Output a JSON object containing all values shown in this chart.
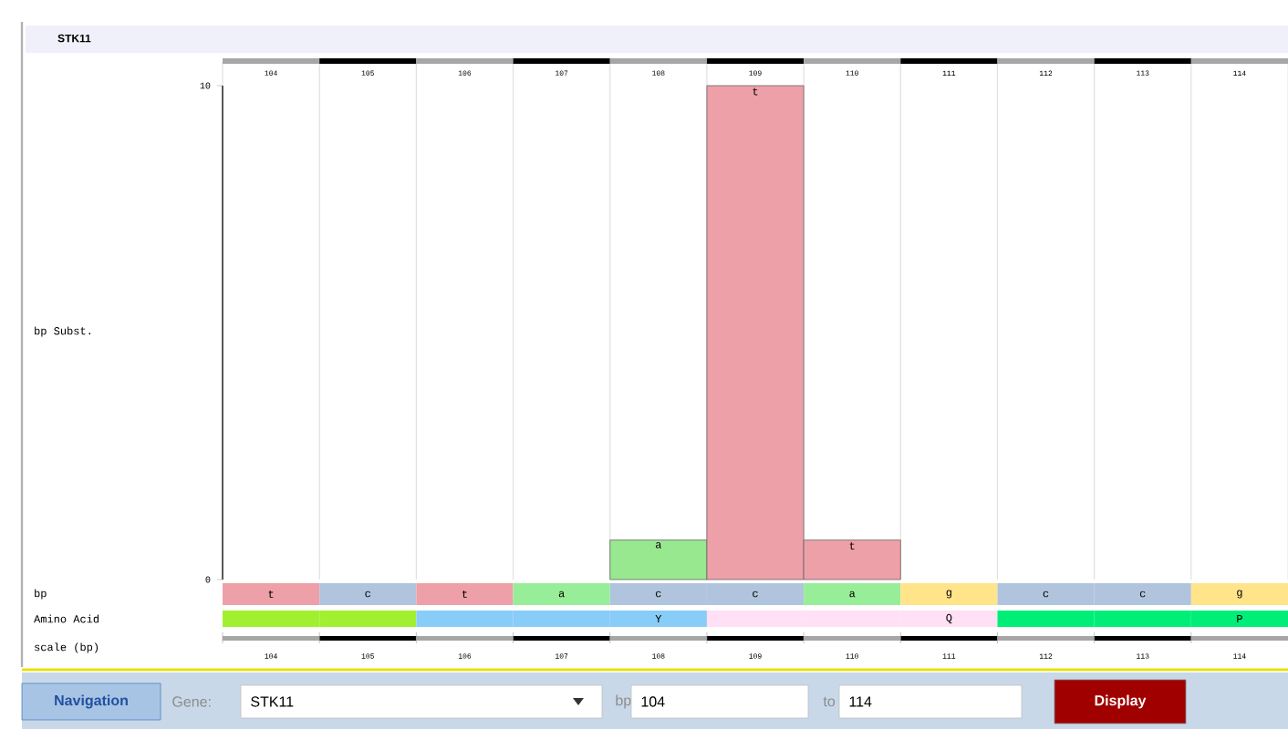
{
  "chart_data": {
    "type": "bar",
    "title": "STK11",
    "categories": [
      "104",
      "105",
      "106",
      "107",
      "108",
      "109",
      "110",
      "111",
      "112",
      "113",
      "114"
    ],
    "values": [
      null,
      null,
      null,
      null,
      0.8,
      10,
      0.8,
      null,
      null,
      null,
      null
    ],
    "colors": [
      null,
      null,
      null,
      null,
      "#98e890",
      "#eea0a8",
      "#eea0a8",
      null,
      null,
      null,
      null
    ],
    "ylim": [
      0,
      10
    ],
    "yticks": [
      0,
      10
    ],
    "annotations": [
      {
        "text": "a",
        "x": "108",
        "y": 0.8
      },
      {
        "text": "t",
        "x": "109",
        "y": 10
      },
      {
        "text": "t",
        "x": "110",
        "y": 0.8
      },
      "bp Subst.",
      "bp",
      "t",
      "c",
      "t",
      "a",
      "c",
      "c",
      "a",
      "g",
      "c",
      "c",
      "g",
      "Amino Acid",
      "Y",
      "Q",
      "P",
      "scale (bp)",
      "Navigation",
      "Gene:",
      "STK11",
      "bp",
      "104",
      "to",
      "114",
      "Display"
    ]
  }
}
